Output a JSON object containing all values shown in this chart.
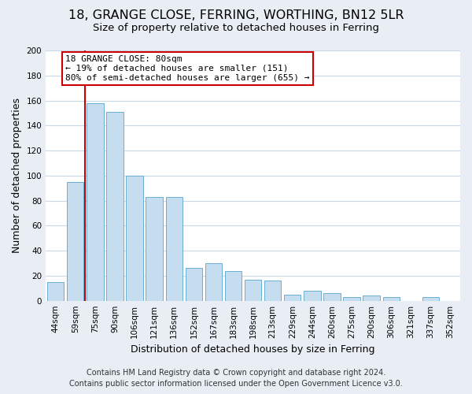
{
  "title": "18, GRANGE CLOSE, FERRING, WORTHING, BN12 5LR",
  "subtitle": "Size of property relative to detached houses in Ferring",
  "xlabel": "Distribution of detached houses by size in Ferring",
  "ylabel": "Number of detached properties",
  "categories": [
    "44sqm",
    "59sqm",
    "75sqm",
    "90sqm",
    "106sqm",
    "121sqm",
    "136sqm",
    "152sqm",
    "167sqm",
    "183sqm",
    "198sqm",
    "213sqm",
    "229sqm",
    "244sqm",
    "260sqm",
    "275sqm",
    "290sqm",
    "306sqm",
    "321sqm",
    "337sqm",
    "352sqm"
  ],
  "values": [
    15,
    95,
    158,
    151,
    100,
    83,
    83,
    26,
    30,
    24,
    17,
    16,
    5,
    8,
    6,
    3,
    4,
    3,
    0,
    3,
    0
  ],
  "bar_color": "#c5ddef",
  "bar_edge_color": "#6aafd6",
  "red_line_x": 1.5,
  "red_line_color": "#cc0000",
  "annotation_text": "18 GRANGE CLOSE: 80sqm\n← 19% of detached houses are smaller (151)\n80% of semi-detached houses are larger (655) →",
  "annotation_box_color": "#ffffff",
  "annotation_box_edge": "#cc0000",
  "ylim": [
    0,
    200
  ],
  "yticks": [
    0,
    20,
    40,
    60,
    80,
    100,
    120,
    140,
    160,
    180,
    200
  ],
  "footer_line1": "Contains HM Land Registry data © Crown copyright and database right 2024.",
  "footer_line2": "Contains public sector information licensed under the Open Government Licence v3.0.",
  "bg_color": "#e8eef4",
  "plot_bg_color": "#ffffff",
  "grid_color": "#c8d8e8",
  "title_fontsize": 11.5,
  "subtitle_fontsize": 9.5,
  "axis_label_fontsize": 9,
  "tick_fontsize": 7.5,
  "annotation_fontsize": 8,
  "footer_fontsize": 7
}
